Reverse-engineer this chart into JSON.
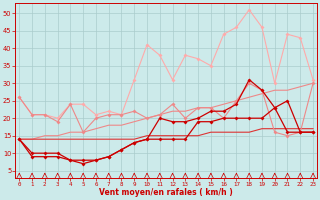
{
  "x": [
    0,
    1,
    2,
    3,
    4,
    5,
    6,
    7,
    8,
    9,
    10,
    11,
    12,
    13,
    14,
    15,
    16,
    17,
    18,
    19,
    20,
    21,
    22,
    23
  ],
  "line_upper_light": [
    26,
    21,
    21,
    20,
    24,
    24,
    21,
    22,
    21,
    31,
    41,
    38,
    31,
    38,
    37,
    35,
    44,
    46,
    51,
    46,
    30,
    44,
    43,
    31
  ],
  "line_mid_light": [
    26,
    21,
    21,
    19,
    24,
    16,
    20,
    21,
    21,
    22,
    20,
    21,
    24,
    20,
    23,
    23,
    20,
    25,
    30,
    28,
    16,
    15,
    16,
    30
  ],
  "line_trend_light": [
    14,
    14,
    15,
    15,
    16,
    16,
    17,
    18,
    18,
    19,
    20,
    21,
    22,
    22,
    23,
    23,
    24,
    25,
    26,
    27,
    28,
    28,
    29,
    30
  ],
  "line_trend_medium": [
    14,
    14,
    14,
    14,
    14,
    14,
    14,
    14,
    14,
    14,
    15,
    15,
    15,
    15,
    15,
    16,
    16,
    16,
    16,
    17,
    17,
    17,
    17,
    17
  ],
  "line_dark1": [
    14,
    9,
    9,
    9,
    8,
    7,
    8,
    9,
    11,
    13,
    14,
    14,
    14,
    14,
    19,
    19,
    20,
    20,
    20,
    20,
    23,
    25,
    16,
    16
  ],
  "line_dark2": [
    14,
    10,
    10,
    10,
    8,
    8,
    8,
    9,
    11,
    13,
    14,
    20,
    19,
    19,
    20,
    22,
    22,
    24,
    31,
    28,
    23,
    16,
    16,
    16
  ],
  "background_color": "#cceaea",
  "grid_color": "#aacccc",
  "color_dark_red": "#cc0000",
  "color_medium_red": "#dd3333",
  "color_light_red": "#ee8888",
  "color_pale_red": "#ffaaaa",
  "xlabel": "Vent moyen/en rafales ( km/h )",
  "yticks": [
    5,
    10,
    15,
    20,
    25,
    30,
    35,
    40,
    45,
    50
  ],
  "xlim": [
    -0.3,
    23.3
  ],
  "ylim": [
    3,
    53
  ]
}
